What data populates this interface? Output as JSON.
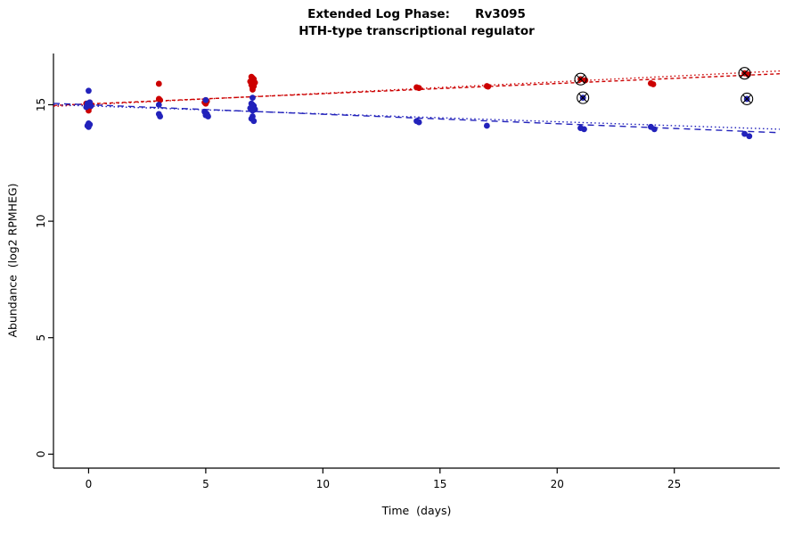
{
  "header": {
    "title": "Extended Log Phase:      Rv3095",
    "subtitle": "HTH-type transcriptional regulator"
  },
  "axes": {
    "xlabel": "Time  (days)",
    "ylabel": "Abundance  (log2 RPMHEG)"
  },
  "chart_data": {
    "type": "scatter",
    "title": "Extended Log Phase:      Rv3095",
    "subtitle": "HTH-type transcriptional regulator",
    "xlabel": "Time (days)",
    "ylabel": "Abundance (log2 RPMHEG)",
    "xlim": [
      -1.5,
      29.5
    ],
    "ylim": [
      -0.6,
      17.2
    ],
    "xticks": [
      0,
      5,
      10,
      15,
      20,
      25
    ],
    "yticks": [
      0,
      5,
      10,
      15
    ],
    "grid": false,
    "legend": "none",
    "colors": {
      "red_series": "#cc0000",
      "blue_series": "#2222bb",
      "outlier_mark": "#000000",
      "axis": "#000000"
    },
    "series": [
      {
        "name": "red-condition",
        "color": "#cc0000",
        "points": [
          [
            0.0,
            14.75
          ],
          [
            0.05,
            14.9
          ],
          [
            -0.05,
            14.95
          ],
          [
            0.1,
            15.0
          ],
          [
            0.0,
            15.0
          ],
          [
            -0.1,
            15.05
          ],
          [
            0.05,
            15.1
          ],
          [
            0.0,
            14.85
          ],
          [
            3.0,
            15.9
          ],
          [
            3.0,
            15.25
          ],
          [
            3.05,
            15.2
          ],
          [
            5.0,
            15.2
          ],
          [
            5.05,
            15.15
          ],
          [
            4.95,
            15.1
          ],
          [
            5.0,
            15.05
          ],
          [
            6.95,
            16.2
          ],
          [
            7.0,
            16.15
          ],
          [
            7.05,
            16.1
          ],
          [
            7.0,
            16.05
          ],
          [
            6.9,
            16.0
          ],
          [
            7.1,
            15.95
          ],
          [
            7.0,
            15.9
          ],
          [
            6.95,
            15.85
          ],
          [
            7.05,
            15.8
          ],
          [
            7.0,
            15.75
          ],
          [
            7.0,
            15.7
          ],
          [
            7.0,
            15.65
          ],
          [
            14.0,
            15.75
          ],
          [
            14.1,
            15.72
          ],
          [
            17.0,
            15.8
          ],
          [
            17.05,
            15.78
          ],
          [
            21.0,
            16.1
          ],
          [
            21.2,
            16.05
          ],
          [
            24.0,
            15.92
          ],
          [
            24.1,
            15.88
          ],
          [
            28.0,
            16.35
          ],
          [
            28.15,
            16.3
          ]
        ]
      },
      {
        "name": "blue-condition",
        "color": "#2222bb",
        "points": [
          [
            0.0,
            15.6
          ],
          [
            0.05,
            15.1
          ],
          [
            -0.05,
            15.05
          ],
          [
            0.0,
            15.0
          ],
          [
            0.1,
            14.95
          ],
          [
            -0.1,
            14.9
          ],
          [
            0.0,
            14.2
          ],
          [
            0.05,
            14.15
          ],
          [
            -0.05,
            14.1
          ],
          [
            0.0,
            14.05
          ],
          [
            3.0,
            15.0
          ],
          [
            3.0,
            14.6
          ],
          [
            3.05,
            14.5
          ],
          [
            5.0,
            15.2
          ],
          [
            4.95,
            14.7
          ],
          [
            5.0,
            14.65
          ],
          [
            5.05,
            14.6
          ],
          [
            5.0,
            14.55
          ],
          [
            5.1,
            14.5
          ],
          [
            7.0,
            15.3
          ],
          [
            6.95,
            15.05
          ],
          [
            7.0,
            15.0
          ],
          [
            7.05,
            14.95
          ],
          [
            7.0,
            14.9
          ],
          [
            6.9,
            14.85
          ],
          [
            7.1,
            14.8
          ],
          [
            7.0,
            14.75
          ],
          [
            7.0,
            14.5
          ],
          [
            6.95,
            14.4
          ],
          [
            7.05,
            14.3
          ],
          [
            14.0,
            14.3
          ],
          [
            14.1,
            14.25
          ],
          [
            17.0,
            14.1
          ],
          [
            21.0,
            14.0
          ],
          [
            21.15,
            13.95
          ],
          [
            21.1,
            15.3
          ],
          [
            24.0,
            14.05
          ],
          [
            24.15,
            13.95
          ],
          [
            28.0,
            13.75
          ],
          [
            28.2,
            13.65
          ],
          [
            28.1,
            15.25
          ]
        ]
      }
    ],
    "outlier_marks": [
      [
        21.0,
        16.1
      ],
      [
        21.1,
        15.3
      ],
      [
        28.0,
        16.35
      ],
      [
        28.1,
        15.25
      ]
    ],
    "trend_lines": [
      {
        "color": "#cc0000",
        "dash": "1.5,3",
        "x": [
          -1.5,
          29.5
        ],
        "y": [
          14.93,
          16.45
        ]
      },
      {
        "color": "#cc0000",
        "dash": "4,3",
        "x": [
          -1.5,
          29.5
        ],
        "y": [
          14.97,
          16.33
        ]
      },
      {
        "color": "#2222bb",
        "dash": "7,5",
        "x": [
          -1.5,
          29.5
        ],
        "y": [
          15.06,
          13.8
        ]
      },
      {
        "color": "#2222bb",
        "dash": "1.5,3",
        "x": [
          -1.5,
          29.5
        ],
        "y": [
          15.0,
          13.95
        ]
      }
    ]
  }
}
